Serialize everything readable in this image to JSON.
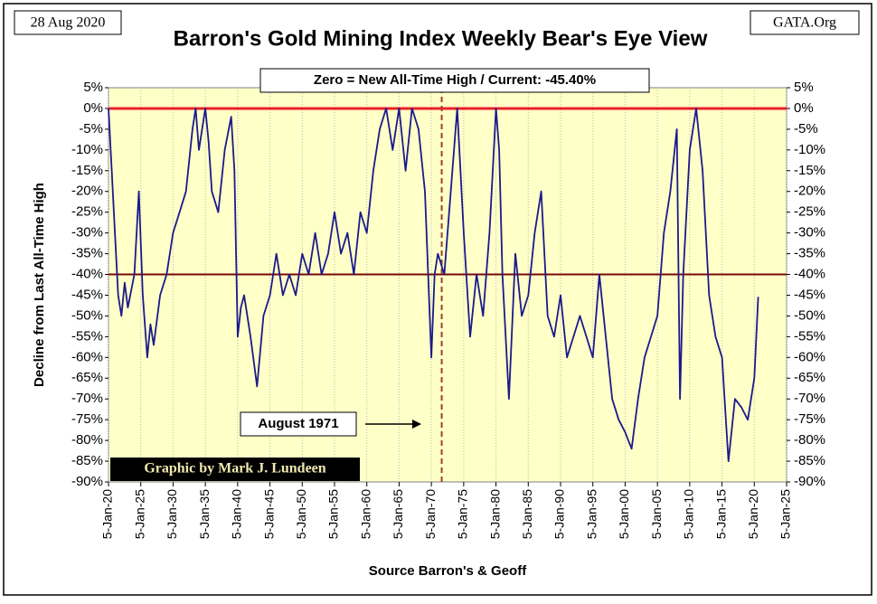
{
  "chart_data": {
    "type": "line",
    "title": "Barron's Gold Mining Index Weekly Bear's Eye View",
    "date_label": "28 Aug 2020",
    "source_site": "GATA.Org",
    "header_note": "Zero = New All-Time High / Current: -45.40%",
    "callout": "August 1971",
    "credit": "Graphic by Mark J. Lundeen",
    "y_label": "Decline from Last All-Time High",
    "x_label": "Source Barron's & Geoff",
    "color": "#1a1a8c",
    "grid": true,
    "reference_lines": [
      {
        "value": 0,
        "color": "#e8202a"
      },
      {
        "value": -40,
        "color": "#7a0a0a"
      }
    ],
    "vertical_line": {
      "value": 1971.6,
      "color": "#a0402a"
    },
    "x": [
      1920,
      1920.5,
      1921,
      1921.5,
      1922,
      1922.5,
      1923,
      1924,
      1924.7,
      1925.3,
      1926,
      1926.5,
      1927,
      1928,
      1929,
      1930,
      1931,
      1932,
      1933,
      1933.5,
      1934,
      1935,
      1935.5,
      1936,
      1937,
      1938,
      1939,
      1939.5,
      1940,
      1940.5,
      1941,
      1942,
      1943,
      1944,
      1945,
      1946,
      1947,
      1948,
      1949,
      1950,
      1951,
      1952,
      1953,
      1954,
      1955,
      1956,
      1957,
      1958,
      1959,
      1960,
      1961,
      1962,
      1963,
      1964,
      1965,
      1966,
      1967,
      1968,
      1969,
      1970,
      1970.5,
      1971,
      1972,
      1973,
      1974,
      1975,
      1976,
      1977,
      1978,
      1979,
      1980,
      1980.5,
      1981,
      1982,
      1983,
      1984,
      1985,
      1986,
      1987,
      1988,
      1989,
      1990,
      1991,
      1992,
      1993,
      1994,
      1995,
      1996,
      1997,
      1998,
      1999,
      2000,
      2001,
      2002,
      2003,
      2004,
      2005,
      2006,
      2007,
      2008,
      2008.5,
      2009,
      2010,
      2011,
      2012,
      2013,
      2014,
      2015,
      2016,
      2017,
      2018,
      2019,
      2020,
      2020.6
    ],
    "values": [
      0,
      -15,
      -30,
      -45,
      -50,
      -42,
      -48,
      -40,
      -20,
      -45,
      -60,
      -52,
      -57,
      -45,
      -40,
      -30,
      -25,
      -20,
      -5,
      0,
      -10,
      0,
      -8,
      -20,
      -25,
      -10,
      -2,
      -15,
      -55,
      -48,
      -45,
      -55,
      -67,
      -50,
      -45,
      -35,
      -45,
      -40,
      -45,
      -35,
      -40,
      -30,
      -40,
      -35,
      -25,
      -35,
      -30,
      -40,
      -25,
      -30,
      -15,
      -5,
      0,
      -10,
      0,
      -15,
      0,
      -5,
      -20,
      -60,
      -40,
      -35,
      -40,
      -20,
      0,
      -30,
      -55,
      -40,
      -50,
      -30,
      0,
      -10,
      -40,
      -70,
      -35,
      -50,
      -45,
      -30,
      -20,
      -50,
      -55,
      -45,
      -60,
      -55,
      -50,
      -55,
      -60,
      -40,
      -55,
      -70,
      -75,
      -78,
      -82,
      -70,
      -60,
      -55,
      -50,
      -30,
      -20,
      -5,
      -70,
      -40,
      -10,
      0,
      -15,
      -45,
      -55,
      -60,
      -85,
      -70,
      -72,
      -75,
      -65,
      -45.4
    ],
    "xlim": [
      1920,
      2025
    ],
    "xticks": [
      {
        "value": 1920,
        "label": "5-Jan-20"
      },
      {
        "value": 1925,
        "label": "5-Jan-25"
      },
      {
        "value": 1930,
        "label": "5-Jan-30"
      },
      {
        "value": 1935,
        "label": "5-Jan-35"
      },
      {
        "value": 1940,
        "label": "5-Jan-40"
      },
      {
        "value": 1945,
        "label": "5-Jan-45"
      },
      {
        "value": 1950,
        "label": "5-Jan-50"
      },
      {
        "value": 1955,
        "label": "5-Jan-55"
      },
      {
        "value": 1960,
        "label": "5-Jan-60"
      },
      {
        "value": 1965,
        "label": "5-Jan-65"
      },
      {
        "value": 1970,
        "label": "5-Jan-70"
      },
      {
        "value": 1975,
        "label": "5-Jan-75"
      },
      {
        "value": 1980,
        "label": "5-Jan-80"
      },
      {
        "value": 1985,
        "label": "5-Jan-85"
      },
      {
        "value": 1990,
        "label": "5-Jan-90"
      },
      {
        "value": 1995,
        "label": "5-Jan-95"
      },
      {
        "value": 2000,
        "label": "5-Jan-00"
      },
      {
        "value": 2005,
        "label": "5-Jan-05"
      },
      {
        "value": 2010,
        "label": "5-Jan-10"
      },
      {
        "value": 2015,
        "label": "5-Jan-15"
      },
      {
        "value": 2020,
        "label": "5-Jan-20"
      },
      {
        "value": 2025,
        "label": "5-Jan-25"
      }
    ],
    "ylim": [
      -90,
      5
    ],
    "yticks": [
      {
        "value": 5,
        "label": "5%"
      },
      {
        "value": 0,
        "label": "0%"
      },
      {
        "value": -5,
        "label": "-5%"
      },
      {
        "value": -10,
        "label": "-10%"
      },
      {
        "value": -15,
        "label": "-15%"
      },
      {
        "value": -20,
        "label": "-20%"
      },
      {
        "value": -25,
        "label": "-25%"
      },
      {
        "value": -30,
        "label": "-30%"
      },
      {
        "value": -35,
        "label": "-35%"
      },
      {
        "value": -40,
        "label": "-40%"
      },
      {
        "value": -45,
        "label": "-45%"
      },
      {
        "value": -50,
        "label": "-50%"
      },
      {
        "value": -55,
        "label": "-55%"
      },
      {
        "value": -60,
        "label": "-60%"
      },
      {
        "value": -65,
        "label": "-65%"
      },
      {
        "value": -70,
        "label": "-70%"
      },
      {
        "value": -75,
        "label": "-75%"
      },
      {
        "value": -80,
        "label": "-80%"
      },
      {
        "value": -85,
        "label": "-85%"
      },
      {
        "value": -90,
        "label": "-90%"
      }
    ],
    "y2lim": [
      -90,
      5
    ],
    "y2ticks": [
      {
        "value": 5,
        "label": "5%"
      },
      {
        "value": 0,
        "label": "0%"
      },
      {
        "value": -5,
        "label": "-5%"
      },
      {
        "value": -10,
        "label": "-10%"
      },
      {
        "value": -15,
        "label": "-15%"
      },
      {
        "value": -20,
        "label": "-20%"
      },
      {
        "value": -25,
        "label": "-25%"
      },
      {
        "value": -30,
        "label": "-30%"
      },
      {
        "value": -35,
        "label": "-35%"
      },
      {
        "value": -40,
        "label": "-40%"
      },
      {
        "value": -45,
        "label": "-45%"
      },
      {
        "value": -50,
        "label": "-50%"
      },
      {
        "value": -55,
        "label": "-55%"
      },
      {
        "value": -60,
        "label": "-60%"
      },
      {
        "value": -65,
        "label": "-65%"
      },
      {
        "value": -70,
        "label": "-70%"
      },
      {
        "value": -75,
        "label": "-75%"
      },
      {
        "value": -80,
        "label": "-80%"
      },
      {
        "value": -85,
        "label": "-85%"
      },
      {
        "value": -90,
        "label": "-90%"
      }
    ]
  }
}
